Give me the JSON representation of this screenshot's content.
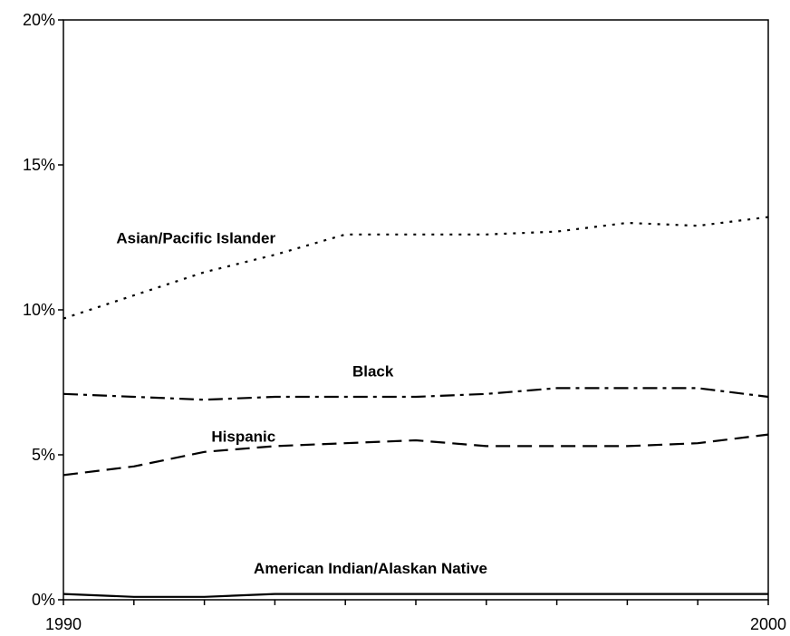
{
  "chart_data": {
    "type": "line",
    "title": "",
    "xlabel": "",
    "ylabel": "",
    "x": [
      1990,
      1991,
      1992,
      1993,
      1994,
      1995,
      1996,
      1997,
      1998,
      1999,
      2000
    ],
    "xlim": [
      1990,
      2000
    ],
    "ylim": [
      0,
      20
    ],
    "x_tick_labels": [
      "1990",
      "2000"
    ],
    "y_ticks": [
      0,
      5,
      10,
      15,
      20
    ],
    "y_tick_labels": [
      "0%",
      "5%",
      "10%",
      "15%",
      "20%"
    ],
    "grid": false,
    "legend": "none",
    "series": [
      {
        "name": "Asian/Pacific Islander",
        "values": [
          9.7,
          10.5,
          11.3,
          11.9,
          12.6,
          12.6,
          12.6,
          12.7,
          13.0,
          12.9,
          13.2
        ],
        "line_style": "dotted",
        "color": "#000000"
      },
      {
        "name": "Black",
        "values": [
          7.1,
          7.0,
          6.9,
          7.0,
          7.0,
          7.0,
          7.1,
          7.3,
          7.3,
          7.3,
          7.0
        ],
        "line_style": "dash-dot",
        "color": "#000000"
      },
      {
        "name": "Hispanic",
        "values": [
          4.3,
          4.6,
          5.1,
          5.3,
          5.4,
          5.5,
          5.3,
          5.3,
          5.3,
          5.4,
          5.7
        ],
        "line_style": "dashed",
        "color": "#000000"
      },
      {
        "name": "American Indian/Alaskan Native",
        "values": [
          0.2,
          0.1,
          0.1,
          0.2,
          0.2,
          0.2,
          0.2,
          0.2,
          0.2,
          0.2,
          0.2
        ],
        "line_style": "solid",
        "color": "#000000"
      }
    ]
  }
}
